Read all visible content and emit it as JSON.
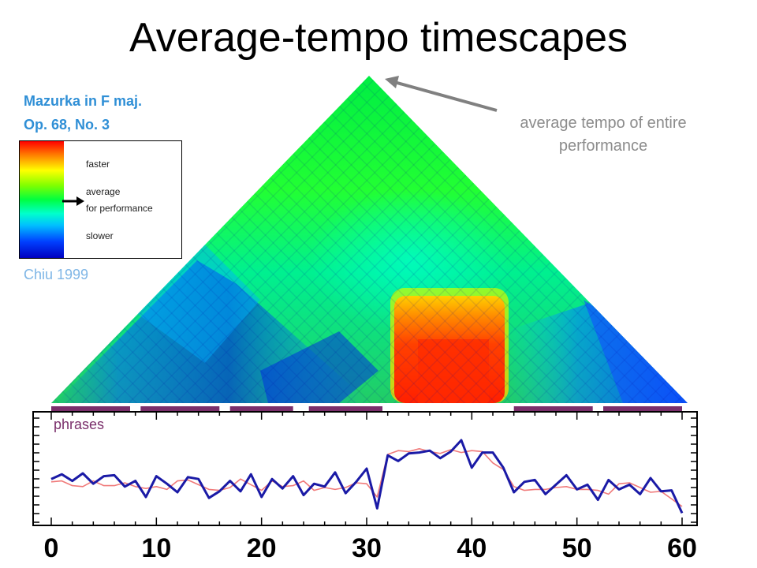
{
  "slide": {
    "title": "Average-tempo timescapes",
    "piece_title": "Mazurka in F maj.",
    "piece_opus": "Op. 68, No. 3",
    "credit": "Chiu 1999"
  },
  "legend": {
    "faster": "faster",
    "average": "average",
    "for_performance": "for performance",
    "slower": "slower"
  },
  "annotation": {
    "line1": "average tempo of entire",
    "line2": "performance",
    "arrow_color": "#808080"
  },
  "phrases_label": "phrases",
  "colors": {
    "phrase_bar": "#7a2f6b",
    "tempo_blue": "#1a1aa6",
    "tempo_red": "#f07a7a",
    "label_blue": "#2f8fd6"
  },
  "chart_data": {
    "type": "line",
    "xlim": [
      0,
      60
    ],
    "x_ticks": [
      "0",
      "10",
      "20",
      "30",
      "40",
      "50",
      "60"
    ],
    "phrases": [
      [
        0,
        7.5
      ],
      [
        8.5,
        16
      ],
      [
        17,
        23
      ],
      [
        24.5,
        31.5
      ],
      [
        44,
        51.5
      ],
      [
        52.5,
        60
      ]
    ],
    "series": [
      {
        "color": "#1a1aa6",
        "x": [
          0,
          1,
          2,
          3,
          4,
          5,
          6,
          7,
          8,
          9,
          10,
          11,
          12,
          13,
          14,
          15,
          16,
          17,
          18,
          19,
          20,
          21,
          22,
          23,
          24,
          25,
          26,
          27,
          28,
          29,
          30,
          31,
          32,
          33,
          34,
          35,
          36,
          37,
          38,
          39,
          40,
          41,
          42,
          43,
          44,
          45,
          46,
          47,
          48,
          49,
          50,
          51,
          52,
          53,
          54,
          55,
          56,
          57,
          58,
          59,
          60
        ],
        "values": [
          0.44,
          0.49,
          0.42,
          0.5,
          0.39,
          0.47,
          0.48,
          0.36,
          0.42,
          0.25,
          0.47,
          0.39,
          0.3,
          0.46,
          0.44,
          0.24,
          0.31,
          0.42,
          0.31,
          0.49,
          0.25,
          0.44,
          0.34,
          0.47,
          0.27,
          0.39,
          0.36,
          0.51,
          0.29,
          0.41,
          0.55,
          0.13,
          0.69,
          0.63,
          0.71,
          0.72,
          0.74,
          0.66,
          0.73,
          0.85,
          0.56,
          0.72,
          0.72,
          0.56,
          0.3,
          0.41,
          0.43,
          0.28,
          0.38,
          0.48,
          0.33,
          0.38,
          0.22,
          0.43,
          0.33,
          0.38,
          0.28,
          0.45,
          0.31,
          0.32,
          0.08
        ]
      },
      {
        "color": "#f07a7a",
        "x": [
          0,
          1,
          2,
          3,
          4,
          5,
          6,
          7,
          8,
          9,
          10,
          11,
          12,
          13,
          14,
          15,
          16,
          17,
          18,
          19,
          20,
          21,
          22,
          23,
          24,
          25,
          26,
          27,
          28,
          29,
          30,
          31,
          32,
          33,
          34,
          35,
          36,
          37,
          38,
          39,
          40,
          41,
          42,
          43,
          44,
          45,
          46,
          47,
          48,
          49,
          50,
          51,
          52,
          53,
          54,
          55,
          56,
          57,
          58,
          59,
          60
        ],
        "values": [
          0.41,
          0.42,
          0.37,
          0.36,
          0.42,
          0.37,
          0.37,
          0.4,
          0.36,
          0.34,
          0.36,
          0.33,
          0.42,
          0.43,
          0.38,
          0.33,
          0.32,
          0.35,
          0.44,
          0.38,
          0.32,
          0.42,
          0.36,
          0.37,
          0.42,
          0.32,
          0.35,
          0.33,
          0.35,
          0.4,
          0.39,
          0.25,
          0.7,
          0.74,
          0.73,
          0.76,
          0.73,
          0.71,
          0.75,
          0.72,
          0.74,
          0.73,
          0.61,
          0.54,
          0.36,
          0.32,
          0.33,
          0.33,
          0.35,
          0.36,
          0.33,
          0.33,
          0.32,
          0.28,
          0.39,
          0.4,
          0.35,
          0.3,
          0.31,
          0.23,
          0.15
        ]
      }
    ]
  },
  "scape_data": {
    "type": "heatmap",
    "description_shape": "triangle",
    "x_range": [
      0,
      60
    ],
    "peak_value": 0.5
  }
}
